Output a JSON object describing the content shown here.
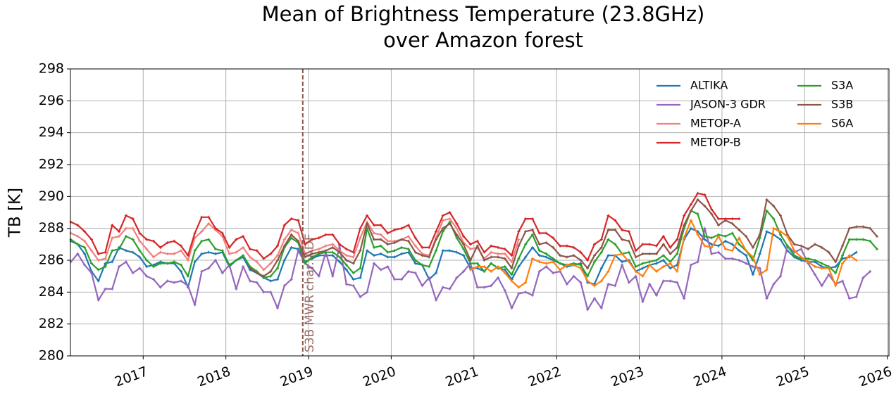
{
  "chart_data": {
    "type": "line",
    "title": [
      "Mean of Brightness Temperature (23.8GHz)",
      "over Amazon forest"
    ],
    "ylabel": "TB [K]",
    "xlim": [
      2016.12,
      2026.02
    ],
    "xticks": [
      2017,
      2018,
      2019,
      2020,
      2021,
      2022,
      2023,
      2024,
      2025,
      2026
    ],
    "ylim": [
      280,
      298
    ],
    "yticks": [
      280,
      282,
      284,
      286,
      288,
      290,
      292,
      294,
      296,
      298
    ],
    "grid": true,
    "legend": "upper right",
    "vlines": [
      {
        "x": 2018.93,
        "label": "S3B MWR char. ADF",
        "color": "#8c564b"
      }
    ],
    "x": [
      2016.125,
      2016.208,
      2016.292,
      2016.375,
      2016.458,
      2016.542,
      2016.625,
      2016.708,
      2016.792,
      2016.875,
      2016.958,
      2017.042,
      2017.125,
      2017.208,
      2017.292,
      2017.375,
      2017.458,
      2017.542,
      2017.625,
      2017.708,
      2017.792,
      2017.875,
      2017.958,
      2018.042,
      2018.125,
      2018.208,
      2018.292,
      2018.375,
      2018.458,
      2018.542,
      2018.625,
      2018.708,
      2018.792,
      2018.875,
      2018.958,
      2019.042,
      2019.125,
      2019.208,
      2019.292,
      2019.375,
      2019.458,
      2019.542,
      2019.625,
      2019.708,
      2019.792,
      2019.875,
      2019.958,
      2020.042,
      2020.125,
      2020.208,
      2020.292,
      2020.375,
      2020.458,
      2020.542,
      2020.625,
      2020.708,
      2020.792,
      2020.875,
      2020.958,
      2021.042,
      2021.125,
      2021.208,
      2021.292,
      2021.375,
      2021.458,
      2021.542,
      2021.625,
      2021.708,
      2021.792,
      2021.875,
      2021.958,
      2022.042,
      2022.125,
      2022.208,
      2022.292,
      2022.375,
      2022.458,
      2022.542,
      2022.625,
      2022.708,
      2022.792,
      2022.875,
      2022.958,
      2023.042,
      2023.125,
      2023.208,
      2023.292,
      2023.375,
      2023.458,
      2023.542,
      2023.625,
      2023.708,
      2023.792,
      2023.875,
      2023.958,
      2024.042,
      2024.125,
      2024.208,
      2024.292,
      2024.375,
      2024.458,
      2024.542,
      2024.625,
      2024.708,
      2024.792,
      2024.875,
      2024.958,
      2025.042,
      2025.125,
      2025.208,
      2025.292,
      2025.375,
      2025.458,
      2025.542,
      2025.625,
      2025.708,
      2025.792,
      2025.875
    ],
    "series": [
      {
        "name": "ALTIKA",
        "color": "#1f77b4",
        "values": [
          287.2,
          287.0,
          286.4,
          285.3,
          284.7,
          285.8,
          285.9,
          286.8,
          286.6,
          286.5,
          286.2,
          285.6,
          285.7,
          285.9,
          285.8,
          285.8,
          285.3,
          284.3,
          285.9,
          286.4,
          286.5,
          286.4,
          286.5,
          285.6,
          286.0,
          286.2,
          285.4,
          285.2,
          284.9,
          284.7,
          284.8,
          286.0,
          286.8,
          286.7,
          285.9,
          286.1,
          286.3,
          286.3,
          286.3,
          285.9,
          285.4,
          284.8,
          284.9,
          286.6,
          286.3,
          286.4,
          286.2,
          286.2,
          286.4,
          286.5,
          285.8,
          285.7,
          284.8,
          285.2,
          286.6,
          286.6,
          286.5,
          286.3,
          285.5,
          285.5,
          285.3,
          285.8,
          285.5,
          285.4,
          284.8,
          285.6,
          286.2,
          286.8,
          286.3,
          286.2,
          286.0,
          285.8,
          285.6,
          285.7,
          285.8,
          284.6,
          284.5,
          285.5,
          286.3,
          286.3,
          285.9,
          286.0,
          285.3,
          285.5,
          285.7,
          285.8,
          286.0,
          285.5,
          285.7,
          287.3,
          288.0,
          287.8,
          287.3,
          287.0,
          286.9,
          287.2,
          287.0,
          286.6,
          286.3,
          285.1,
          286.4,
          287.8,
          287.6,
          287.3,
          286.6,
          286.2,
          286.0,
          285.9,
          285.9,
          285.6,
          285.5,
          285.6,
          286.1,
          286.2,
          286.5,
          null,
          null,
          null
        ]
      },
      {
        "name": "JASON-3 GDR",
        "color": "#9467bd",
        "values": [
          285.9,
          286.4,
          285.7,
          285.2,
          283.5,
          284.2,
          284.2,
          285.6,
          285.9,
          285.2,
          285.5,
          285.0,
          284.8,
          284.3,
          284.7,
          284.6,
          284.7,
          284.4,
          283.2,
          285.3,
          285.5,
          286.0,
          285.2,
          285.7,
          284.2,
          285.6,
          284.7,
          284.6,
          284.0,
          284.0,
          283.0,
          284.4,
          284.8,
          286.6,
          285.8,
          285.5,
          285.0,
          286.5,
          285.0,
          286.9,
          284.5,
          284.4,
          283.7,
          284.0,
          285.8,
          285.4,
          285.6,
          284.8,
          284.8,
          285.3,
          285.2,
          284.4,
          284.9,
          283.5,
          284.3,
          284.2,
          284.9,
          285.3,
          285.8,
          284.3,
          284.3,
          284.4,
          284.9,
          284.1,
          283.0,
          283.9,
          284.0,
          283.8,
          285.3,
          285.6,
          285.2,
          285.3,
          284.5,
          285.0,
          284.6,
          282.9,
          283.6,
          283.0,
          284.5,
          284.4,
          285.7,
          284.6,
          285.0,
          283.4,
          284.5,
          283.8,
          284.7,
          284.7,
          284.6,
          283.6,
          285.7,
          285.9,
          288.0,
          286.4,
          286.5,
          286.1,
          286.1,
          286.0,
          285.8,
          285.6,
          285.5,
          283.6,
          284.5,
          285.0,
          286.9,
          286.5,
          286.7,
          285.8,
          285.1,
          284.4,
          285.1,
          284.5,
          284.7,
          283.6,
          283.7,
          284.9,
          285.3,
          null
        ]
      },
      {
        "name": "METOP-A",
        "color": "#f08080",
        "values": [
          287.7,
          287.5,
          287.2,
          286.6,
          286.0,
          286.1,
          287.4,
          287.5,
          288.0,
          288.0,
          287.2,
          286.7,
          286.2,
          286.5,
          286.4,
          286.4,
          286.6,
          286.0,
          287.4,
          287.8,
          288.3,
          287.9,
          287.5,
          286.4,
          286.5,
          286.8,
          286.2,
          285.9,
          285.4,
          285.8,
          286.3,
          287.3,
          287.9,
          287.7,
          286.4,
          286.6,
          286.7,
          286.9,
          287.0,
          286.6,
          286.3,
          286.2,
          287.4,
          288.4,
          287.7,
          287.6,
          287.2,
          287.2,
          287.3,
          287.5,
          286.9,
          286.4,
          286.3,
          287.4,
          288.5,
          288.6,
          288.0,
          287.1,
          286.7,
          286.8,
          286.1,
          286.5,
          286.4,
          286.4,
          285.9,
          287.3,
          null,
          null,
          null,
          null,
          null,
          null,
          null,
          null,
          null,
          null,
          null,
          null,
          null,
          null,
          null,
          null,
          null,
          null,
          null,
          null,
          null,
          null,
          null,
          null,
          null,
          null,
          null,
          null,
          null,
          null,
          null,
          null,
          null,
          null,
          null,
          null,
          null,
          null,
          null,
          null,
          null,
          null,
          null,
          null,
          null,
          null,
          null,
          null,
          null,
          null,
          null,
          null
        ]
      },
      {
        "name": "METOP-B",
        "color": "#d62728",
        "values": [
          288.4,
          288.2,
          287.8,
          287.3,
          286.4,
          286.5,
          288.2,
          287.8,
          288.8,
          288.6,
          287.7,
          287.3,
          287.2,
          286.8,
          287.1,
          287.2,
          286.9,
          286.3,
          287.7,
          288.7,
          288.7,
          288.0,
          287.7,
          286.8,
          287.3,
          287.5,
          286.7,
          286.6,
          286.1,
          286.4,
          286.9,
          288.2,
          288.6,
          288.5,
          287.0,
          287.3,
          287.4,
          287.6,
          287.6,
          287.0,
          286.7,
          286.5,
          288.0,
          288.8,
          288.2,
          288.2,
          287.7,
          287.9,
          288.0,
          288.2,
          287.4,
          286.8,
          286.8,
          287.8,
          288.8,
          289.0,
          288.3,
          287.5,
          287.0,
          287.2,
          286.5,
          286.9,
          286.8,
          286.7,
          286.3,
          287.8,
          288.6,
          288.6,
          287.7,
          287.7,
          287.4,
          286.9,
          286.9,
          286.8,
          286.5,
          286.0,
          287.0,
          287.3,
          288.8,
          288.5,
          287.9,
          287.8,
          286.6,
          287.0,
          287.0,
          286.9,
          287.5,
          286.8,
          287.3,
          288.8,
          289.5,
          290.2,
          290.1,
          289.2,
          288.6,
          288.6,
          288.6,
          288.6,
          null,
          null,
          null,
          null,
          null,
          null,
          null,
          null,
          null,
          null,
          null,
          null,
          null,
          null,
          null,
          null,
          null,
          null,
          null,
          null
        ]
      },
      {
        "name": "S3A",
        "color": "#2ca02c",
        "values": [
          287.3,
          287.0,
          286.8,
          285.8,
          285.4,
          285.6,
          286.6,
          286.7,
          287.5,
          287.3,
          286.6,
          286.0,
          285.6,
          285.8,
          285.8,
          285.9,
          285.7,
          285.0,
          286.6,
          287.2,
          287.3,
          286.7,
          286.6,
          285.7,
          286.0,
          286.3,
          285.6,
          285.3,
          284.9,
          285.0,
          285.5,
          286.8,
          287.4,
          287.1,
          285.8,
          286.2,
          286.4,
          286.5,
          286.5,
          286.2,
          285.7,
          285.2,
          285.5,
          288.0,
          286.8,
          286.9,
          286.5,
          286.6,
          286.8,
          286.7,
          286.0,
          285.7,
          285.6,
          286.6,
          287.8,
          288.4,
          287.4,
          286.7,
          285.8,
          285.8,
          285.3,
          285.8,
          285.5,
          285.6,
          285.1,
          286.1,
          287.0,
          287.6,
          286.6,
          286.4,
          286.1,
          285.8,
          285.7,
          285.8,
          285.7,
          285.0,
          285.9,
          286.5,
          287.3,
          287.0,
          286.4,
          286.5,
          285.6,
          285.8,
          285.9,
          286.0,
          286.3,
          285.9,
          286.4,
          288.0,
          289.1,
          288.9,
          287.5,
          287.4,
          287.6,
          287.5,
          287.7,
          287.0,
          286.6,
          286.0,
          287.4,
          289.1,
          288.6,
          287.6,
          286.9,
          286.3,
          286.1,
          286.1,
          286.0,
          285.8,
          285.6,
          285.2,
          286.3,
          287.3,
          287.3,
          287.3,
          287.2,
          286.7
        ]
      },
      {
        "name": "S3B",
        "color": "#8c564b",
        "values": [
          null,
          null,
          null,
          null,
          null,
          null,
          null,
          null,
          null,
          null,
          null,
          null,
          null,
          null,
          null,
          null,
          null,
          null,
          null,
          null,
          null,
          null,
          null,
          null,
          null,
          null,
          285.5,
          285.2,
          285.0,
          285.3,
          286.0,
          286.9,
          287.6,
          287.2,
          286.2,
          286.4,
          286.5,
          286.6,
          286.8,
          286.5,
          286.0,
          285.8,
          286.6,
          288.3,
          287.3,
          287.3,
          287.0,
          287.1,
          287.3,
          287.2,
          286.5,
          286.3,
          286.2,
          287.3,
          288.0,
          288.3,
          287.6,
          287.0,
          286.0,
          286.9,
          286.0,
          286.2,
          286.2,
          286.1,
          285.5,
          286.9,
          287.8,
          287.9,
          287.0,
          287.1,
          286.8,
          286.3,
          286.2,
          286.3,
          286.0,
          285.5,
          286.3,
          286.8,
          287.9,
          287.9,
          287.3,
          287.2,
          286.2,
          286.4,
          286.4,
          286.4,
          287.0,
          286.4,
          286.8,
          288.2,
          289.1,
          289.8,
          289.4,
          288.9,
          288.2,
          288.5,
          288.3,
          287.9,
          287.5,
          286.8,
          287.6,
          289.8,
          289.4,
          288.8,
          287.6,
          287.0,
          286.9,
          286.7,
          287.0,
          286.8,
          286.5,
          285.9,
          286.9,
          288.0,
          288.1,
          288.1,
          288.0,
          287.5
        ]
      },
      {
        "name": "S6A",
        "color": "#ff7f0e",
        "values": [
          null,
          null,
          null,
          null,
          null,
          null,
          null,
          null,
          null,
          null,
          null,
          null,
          null,
          null,
          null,
          null,
          null,
          null,
          null,
          null,
          null,
          null,
          null,
          null,
          null,
          null,
          null,
          null,
          null,
          null,
          null,
          null,
          null,
          null,
          null,
          null,
          null,
          null,
          null,
          null,
          null,
          null,
          null,
          null,
          null,
          null,
          null,
          null,
          null,
          null,
          null,
          null,
          null,
          null,
          null,
          null,
          null,
          null,
          285.4,
          285.6,
          285.6,
          285.3,
          285.6,
          285.2,
          284.7,
          284.3,
          284.6,
          286.1,
          285.9,
          285.8,
          285.9,
          285.4,
          285.7,
          285.7,
          285.5,
          284.7,
          284.4,
          284.7,
          285.3,
          286.3,
          286.4,
          285.9,
          285.3,
          285.0,
          285.7,
          285.3,
          285.6,
          285.8,
          285.3,
          287.4,
          288.5,
          287.6,
          286.9,
          286.8,
          287.5,
          286.7,
          286.6,
          287.4,
          286.6,
          286.2,
          285.1,
          285.4,
          288.0,
          287.8,
          287.5,
          286.6,
          286.2,
          285.9,
          285.6,
          285.5,
          285.5,
          284.4,
          285.8,
          286.3,
          286.0,
          null,
          null,
          null
        ]
      }
    ]
  }
}
